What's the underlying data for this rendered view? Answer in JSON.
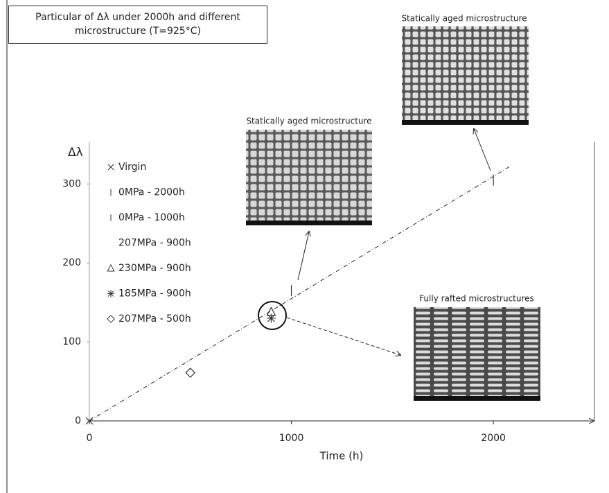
{
  "chart_data": {
    "type": "scatter",
    "title": "Particular of Δλ under 2000h and different microstructure (T=925°C)",
    "x_label": "Time (h)",
    "y_label": "Δλ",
    "xlim": [
      0,
      2490
    ],
    "ylim": [
      0,
      353
    ],
    "xticks": [
      0,
      1000,
      2000
    ],
    "yticks": [
      0,
      100,
      200,
      300
    ],
    "series": [
      {
        "name": "Virgin",
        "marker": "x",
        "color": "#333333",
        "x": [
          0
        ],
        "values": [
          0
        ]
      },
      {
        "name": "0MPa - 2000h",
        "marker": "vline",
        "color": "#333333",
        "x": [
          2000
        ],
        "values": [
          305
        ]
      },
      {
        "name": "0MPa - 1000h",
        "marker": "vline",
        "color": "#333333",
        "x": [
          1000
        ],
        "values": [
          165
        ]
      },
      {
        "name": "207MPa - 900h",
        "marker": "circle",
        "color": "#333333",
        "x": [
          900
        ],
        "values": [
          133
        ]
      },
      {
        "name": "230MPa - 900h",
        "marker": "triangle",
        "color": "#333333",
        "x": [
          900
        ],
        "values": [
          138
        ]
      },
      {
        "name": "185MPa - 900h",
        "marker": "asterisk",
        "color": "#333333",
        "x": [
          900
        ],
        "values": [
          130
        ]
      },
      {
        "name": "207MPa - 500h",
        "marker": "diamond",
        "color": "#333333",
        "x": [
          500
        ],
        "values": [
          61
        ]
      }
    ],
    "trend_line": {
      "x": [
        0,
        2080
      ],
      "values": [
        0,
        322
      ]
    },
    "annotations": [
      "Statically aged microstructure",
      "Statically aged microstructure",
      "Fully rafted microstructures"
    ]
  }
}
